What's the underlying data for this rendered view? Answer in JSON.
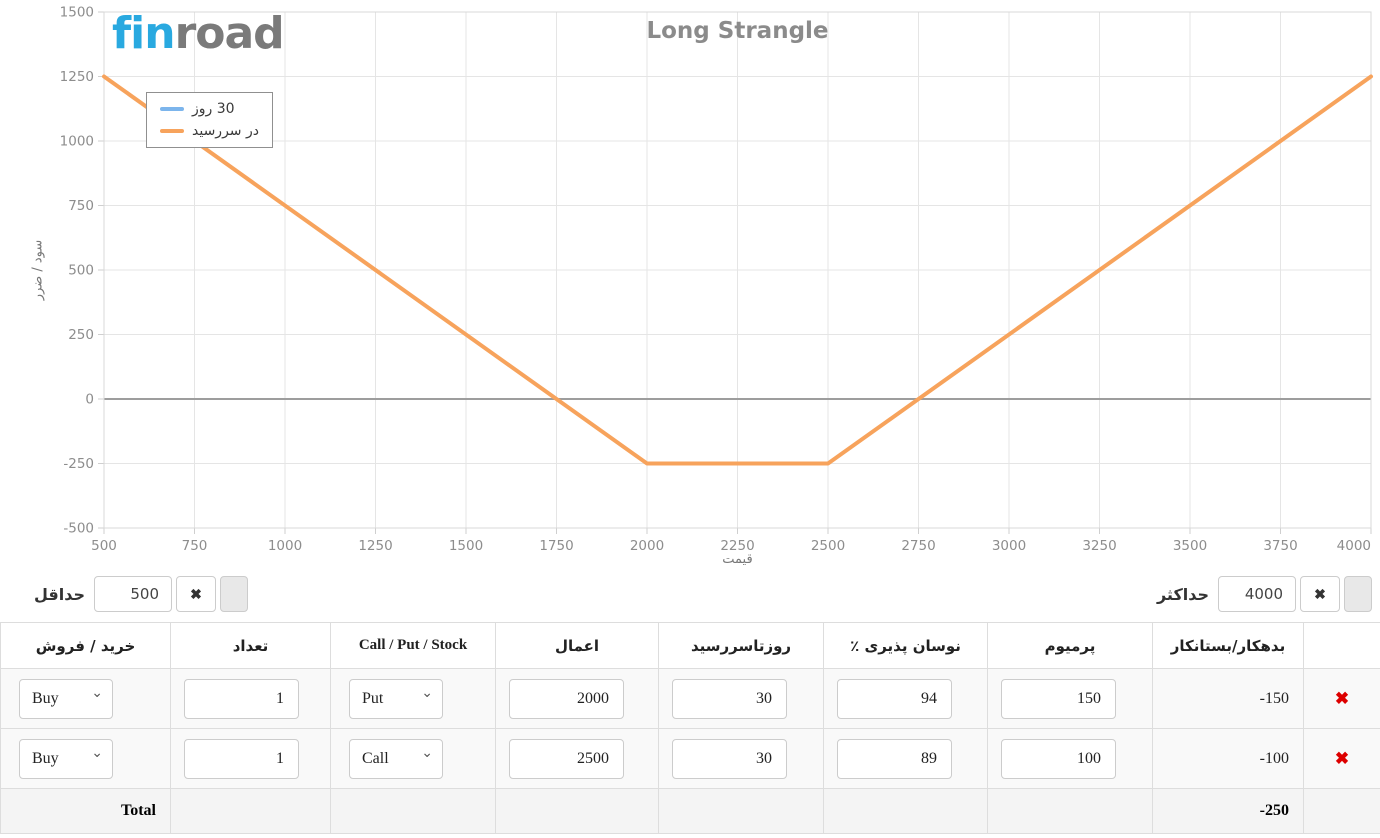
{
  "logo": {
    "fin": "fin",
    "road": "road"
  },
  "chart_data": {
    "type": "line",
    "title": "Long Strangle",
    "xlabel": "قیمت",
    "ylabel": "سود / ضرر",
    "xlim": [
      500,
      4000
    ],
    "ylim": [
      -500,
      1500
    ],
    "xticks": [
      500,
      750,
      1000,
      1250,
      1500,
      1750,
      2000,
      2250,
      2500,
      2750,
      3000,
      3250,
      3500,
      3750,
      4000
    ],
    "yticks": [
      -500,
      -250,
      0,
      250,
      500,
      750,
      1000,
      1250,
      1500
    ],
    "grid": true,
    "legend_position": "top-left",
    "legend": [
      {
        "label": "30 روز",
        "color": "#7cb5ec"
      },
      {
        "label": "در سررسید",
        "color": "#f7a35c"
      }
    ],
    "series": [
      {
        "name": "در سررسید",
        "color": "#f7a35c",
        "points": [
          {
            "x": 500,
            "y": 1250
          },
          {
            "x": 2000,
            "y": -250
          },
          {
            "x": 2500,
            "y": -250
          },
          {
            "x": 4000,
            "y": 1250
          }
        ]
      }
    ],
    "zero_line_color": "#9d9d9d",
    "grid_color": "#e5e5e5"
  },
  "controls": {
    "min": {
      "label": "حداقل",
      "value": "500"
    },
    "max": {
      "label": "حداکثر",
      "value": "4000"
    },
    "clear_label": "✖"
  },
  "table": {
    "headers": [
      "خرید / فروش",
      "تعداد",
      "Call / Put / Stock",
      "اعمال",
      "روزتاسررسید",
      "٪ نوسان پذیری",
      "پرمیوم",
      "بدهکار/بستانکار",
      ""
    ],
    "delete_label": "✖",
    "rows": [
      {
        "side": "Buy",
        "qty": "1",
        "type": "Put",
        "strike": "2000",
        "days": "30",
        "vol": "94",
        "premium": "150",
        "net": "-150"
      },
      {
        "side": "Buy",
        "qty": "1",
        "type": "Call",
        "strike": "2500",
        "days": "30",
        "vol": "89",
        "premium": "100",
        "net": "-100"
      }
    ],
    "total": {
      "label": "Total",
      "net": "-250"
    }
  }
}
